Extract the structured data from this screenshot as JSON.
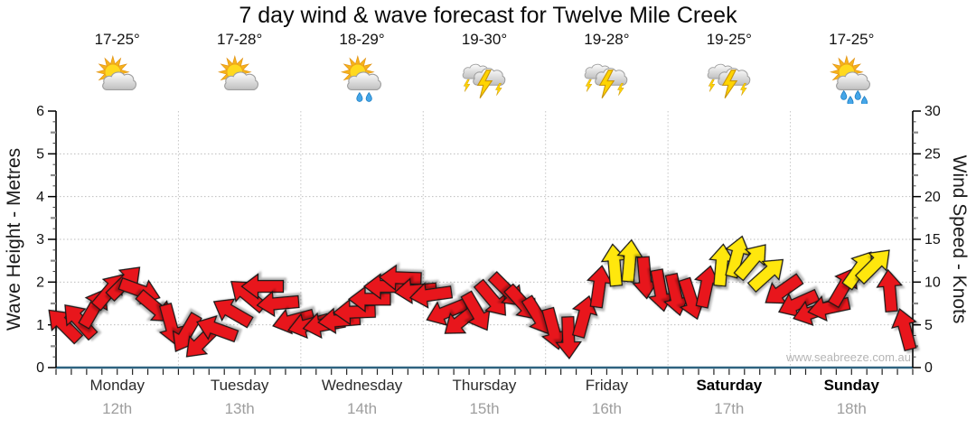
{
  "title": "7 day wind & wave forecast for Twelve Mile Creek",
  "watermark": "www.seabreeze.com.au",
  "chart_data": {
    "type": "wind-arrow-timeseries",
    "title": "7 day wind & wave forecast for Twelve Mile Creek",
    "left_axis": {
      "label": "Wave Height - Metres",
      "min": 0,
      "max": 6,
      "tick_step": 1
    },
    "right_axis": {
      "label": "Wind Speed - Knots",
      "min": 0,
      "max": 30,
      "tick_step": 5
    },
    "grid": true,
    "legend": "none",
    "x_tick_interval_hours": 3,
    "wind_points_per_day": 8,
    "wave_height_metres_constant": 0,
    "wind_colors": {
      "r": "#e8121b",
      "y": "#ffe70f"
    },
    "days": [
      {
        "name": "Monday",
        "date": "12th",
        "temp": "17-25°",
        "icon": "sun-cloud",
        "rain_drops": 0,
        "weekend": false
      },
      {
        "name": "Tuesday",
        "date": "13th",
        "temp": "17-28°",
        "icon": "sun-cloud",
        "rain_drops": 0,
        "weekend": false
      },
      {
        "name": "Wednesday",
        "date": "14th",
        "temp": "18-29°",
        "icon": "sun-cloud-rain",
        "rain_drops": 2,
        "weekend": false
      },
      {
        "name": "Thursday",
        "date": "15th",
        "temp": "19-30°",
        "icon": "storm",
        "rain_drops": 0,
        "weekend": false
      },
      {
        "name": "Friday",
        "date": "16th",
        "temp": "19-28°",
        "icon": "storm",
        "rain_drops": 0,
        "weekend": false
      },
      {
        "name": "Saturday",
        "date": "17th",
        "temp": "19-25°",
        "icon": "storm",
        "rain_drops": 0,
        "weekend": true
      },
      {
        "name": "Sunday",
        "date": "18th",
        "temp": "17-25°",
        "icon": "sun-cloud-rain",
        "rain_drops": 4,
        "weekend": true
      }
    ],
    "wind_series": [
      {
        "kt": 5,
        "dir": 315,
        "c": "r"
      },
      {
        "kt": 5.5,
        "dir": 318,
        "c": "r"
      },
      {
        "kt": 7,
        "dir": 30,
        "c": "r"
      },
      {
        "kt": 9,
        "dir": 40,
        "c": "r"
      },
      {
        "kt": 10,
        "dir": 45,
        "c": "r"
      },
      {
        "kt": 9,
        "dir": 110,
        "c": "r"
      },
      {
        "kt": 7,
        "dir": 130,
        "c": "r"
      },
      {
        "kt": 5,
        "dir": 165,
        "c": "r"
      },
      {
        "kt": 4,
        "dir": 210,
        "c": "r"
      },
      {
        "kt": 3,
        "dir": 225,
        "c": "r"
      },
      {
        "kt": 4.5,
        "dir": 290,
        "c": "r"
      },
      {
        "kt": 6.5,
        "dir": 300,
        "c": "r"
      },
      {
        "kt": 8.5,
        "dir": 310,
        "c": "r"
      },
      {
        "kt": 9.5,
        "dir": 270,
        "c": "r"
      },
      {
        "kt": 7.5,
        "dir": 265,
        "c": "r"
      },
      {
        "kt": 5.5,
        "dir": 255,
        "c": "r"
      },
      {
        "kt": 5,
        "dir": 255,
        "c": "r"
      },
      {
        "kt": 5,
        "dir": 260,
        "c": "r"
      },
      {
        "kt": 5.5,
        "dir": 265,
        "c": "r"
      },
      {
        "kt": 6.5,
        "dir": 268,
        "c": "r"
      },
      {
        "kt": 8,
        "dir": 270,
        "c": "r"
      },
      {
        "kt": 9.5,
        "dir": 270,
        "c": "r"
      },
      {
        "kt": 10.5,
        "dir": 272,
        "c": "r"
      },
      {
        "kt": 9,
        "dir": 265,
        "c": "r"
      },
      {
        "kt": 8.5,
        "dir": 262,
        "c": "r"
      },
      {
        "kt": 6.5,
        "dir": 248,
        "c": "r"
      },
      {
        "kt": 5.5,
        "dir": 232,
        "c": "r"
      },
      {
        "kt": 6.5,
        "dir": 150,
        "c": "r"
      },
      {
        "kt": 8,
        "dir": 140,
        "c": "r"
      },
      {
        "kt": 9,
        "dir": 135,
        "c": "r"
      },
      {
        "kt": 7.5,
        "dir": 138,
        "c": "r"
      },
      {
        "kt": 6,
        "dir": 148,
        "c": "r"
      },
      {
        "kt": 4.5,
        "dir": 165,
        "c": "r"
      },
      {
        "kt": 3.5,
        "dir": 178,
        "c": "r"
      },
      {
        "kt": 6,
        "dir": 15,
        "c": "r"
      },
      {
        "kt": 9.5,
        "dir": 8,
        "c": "r"
      },
      {
        "kt": 12,
        "dir": 355,
        "c": "y"
      },
      {
        "kt": 12.5,
        "dir": 5,
        "c": "y"
      },
      {
        "kt": 10.5,
        "dir": 175,
        "c": "r"
      },
      {
        "kt": 9,
        "dir": 170,
        "c": "r"
      },
      {
        "kt": 8.5,
        "dir": 168,
        "c": "r"
      },
      {
        "kt": 8,
        "dir": 162,
        "c": "r"
      },
      {
        "kt": 9.5,
        "dir": 12,
        "c": "r"
      },
      {
        "kt": 12,
        "dir": 5,
        "c": "y"
      },
      {
        "kt": 13,
        "dir": 15,
        "c": "y"
      },
      {
        "kt": 12.5,
        "dir": 40,
        "c": "y"
      },
      {
        "kt": 11,
        "dir": 48,
        "c": "y"
      },
      {
        "kt": 9,
        "dir": 235,
        "c": "r"
      },
      {
        "kt": 7.5,
        "dir": 246,
        "c": "r"
      },
      {
        "kt": 6.5,
        "dir": 252,
        "c": "r"
      },
      {
        "kt": 7,
        "dir": 258,
        "c": "r"
      },
      {
        "kt": 9.5,
        "dir": 30,
        "c": "r"
      },
      {
        "kt": 11.5,
        "dir": 35,
        "c": "y"
      },
      {
        "kt": 12,
        "dir": 45,
        "c": "y"
      },
      {
        "kt": 9,
        "dir": 355,
        "c": "r"
      },
      {
        "kt": 4.5,
        "dir": 345,
        "c": "r"
      }
    ]
  }
}
